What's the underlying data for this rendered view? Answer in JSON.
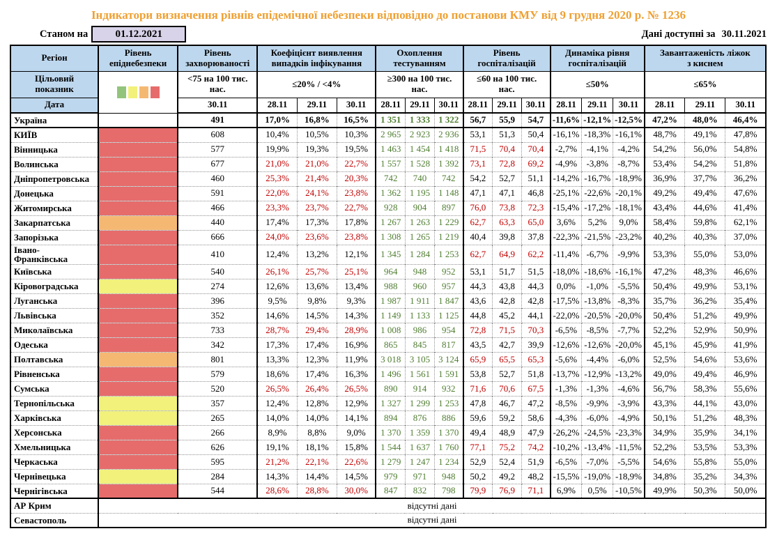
{
  "title": "Індикатори визначення рівнів епідемічної небезпеки відповідно до постанови КМУ від 9 грудня 2020 р. № 1236",
  "as_of": {
    "label": "Станом на",
    "date": "01.12.2021"
  },
  "data_available": {
    "label": "Дані доступні за",
    "date": "30.11.2021"
  },
  "no_data_text": "відсутні дані",
  "colors": {
    "title": "#EFA032",
    "header_bg": "#BDD7EE",
    "datebox_bg": "#D8D3E8",
    "good_bg": "#E2EFD9",
    "good_text": "#507E32",
    "bad_bg": "#F8CDCB",
    "bad_text": "#C00000",
    "level_red": "#E66C6C",
    "level_orange": "#F5B873",
    "level_yellow": "#F1F17C",
    "level_green": "#93C47D"
  },
  "legend_colors": [
    "#93C47D",
    "#F1F17C",
    "#F5B873",
    "#E66C6C"
  ],
  "header": {
    "region": "Регіон",
    "target_label": "Цільовий\nпоказник",
    "date_label": "Дата",
    "groups": [
      {
        "title": "Рівень\nепіднебезпеки",
        "target": "",
        "dates": [],
        "legend": true
      },
      {
        "title": "Рівень\nзахворюваності",
        "target": "<75 на 100 тис.\nнас.",
        "dates": [
          "30.11"
        ]
      },
      {
        "title": "Коефіцієнт виявлення\nвипадків інфікування",
        "target": "≤20% / <4%",
        "dates": [
          "28.11",
          "29.11",
          "30.11"
        ]
      },
      {
        "title": "Охоплення\nтестуванням",
        "target": "≥300 на 100 тис.\nнас.",
        "dates": [
          "28.11",
          "29.11",
          "30.11"
        ]
      },
      {
        "title": "Рівень\nгоспіталізацій",
        "target": "≤60 на 100 тис.\nнас.",
        "dates": [
          "28.11",
          "29.11",
          "30.11"
        ]
      },
      {
        "title": "Динаміка рівня\nгоспіталізацій",
        "target": "≤50%",
        "dates": [
          "28.11",
          "29.11",
          "30.11"
        ]
      },
      {
        "title": "Завантаженість ліжок\nз киснем",
        "target": "≤65%",
        "dates": [
          "28.11",
          "29.11",
          "30.11"
        ]
      }
    ]
  },
  "rows": [
    {
      "region": "Україна",
      "bold": true,
      "level": "none",
      "incidence": "491",
      "det": [
        "17,0%",
        "16,8%",
        "16,5%"
      ],
      "det_bad": false,
      "test": [
        "1 351",
        "1 333",
        "1 322"
      ],
      "hosp": [
        "56,7",
        "55,9",
        "54,7"
      ],
      "hosp_bad": false,
      "dyn": [
        "-11,6%",
        "-12,1%",
        "-12,5%"
      ],
      "beds": [
        "47,2%",
        "48,0%",
        "46,4%"
      ]
    },
    {
      "region": "КИЇВ",
      "level": "red",
      "incidence": "608",
      "det": [
        "10,4%",
        "10,5%",
        "10,3%"
      ],
      "det_bad": false,
      "test": [
        "2 965",
        "2 923",
        "2 936"
      ],
      "hosp": [
        "53,1",
        "51,3",
        "50,4"
      ],
      "hosp_bad": false,
      "dyn": [
        "-16,1%",
        "-18,3%",
        "-16,1%"
      ],
      "beds": [
        "48,7%",
        "49,1%",
        "47,8%"
      ]
    },
    {
      "region": "Вінницька",
      "level": "red",
      "incidence": "577",
      "det": [
        "19,9%",
        "19,3%",
        "19,5%"
      ],
      "det_bad": false,
      "test": [
        "1 463",
        "1 454",
        "1 418"
      ],
      "hosp": [
        "71,5",
        "70,4",
        "70,4"
      ],
      "hosp_bad": true,
      "dyn": [
        "-2,7%",
        "-4,1%",
        "-4,2%"
      ],
      "beds": [
        "54,2%",
        "56,0%",
        "54,8%"
      ]
    },
    {
      "region": "Волинська",
      "level": "red",
      "incidence": "677",
      "det": [
        "21,0%",
        "21,0%",
        "22,7%"
      ],
      "det_bad": true,
      "test": [
        "1 557",
        "1 528",
        "1 392"
      ],
      "hosp": [
        "73,1",
        "72,8",
        "69,2"
      ],
      "hosp_bad": true,
      "dyn": [
        "-4,9%",
        "-3,8%",
        "-8,7%"
      ],
      "beds": [
        "53,4%",
        "54,2%",
        "51,8%"
      ]
    },
    {
      "region": "Дніпропетровська",
      "level": "red",
      "incidence": "460",
      "det": [
        "25,3%",
        "21,4%",
        "20,3%"
      ],
      "det_bad": true,
      "test": [
        "742",
        "740",
        "742"
      ],
      "hosp": [
        "54,2",
        "52,7",
        "51,1"
      ],
      "hosp_bad": false,
      "dyn": [
        "-14,2%",
        "-16,7%",
        "-18,9%"
      ],
      "beds": [
        "36,9%",
        "37,7%",
        "36,2%"
      ]
    },
    {
      "region": "Донецька",
      "level": "red",
      "incidence": "591",
      "det": [
        "22,0%",
        "24,1%",
        "23,8%"
      ],
      "det_bad": true,
      "test": [
        "1 362",
        "1 195",
        "1 148"
      ],
      "hosp": [
        "47,1",
        "47,1",
        "46,8"
      ],
      "hosp_bad": false,
      "dyn": [
        "-25,1%",
        "-22,6%",
        "-20,1%"
      ],
      "beds": [
        "49,2%",
        "49,4%",
        "47,6%"
      ]
    },
    {
      "region": "Житомирська",
      "level": "red",
      "incidence": "466",
      "det": [
        "23,3%",
        "23,7%",
        "22,7%"
      ],
      "det_bad": true,
      "test": [
        "928",
        "904",
        "897"
      ],
      "hosp": [
        "76,0",
        "73,8",
        "72,3"
      ],
      "hosp_bad": true,
      "dyn": [
        "-15,4%",
        "-17,2%",
        "-18,1%"
      ],
      "beds": [
        "43,4%",
        "44,6%",
        "41,4%"
      ]
    },
    {
      "region": "Закарпатська",
      "level": "orange",
      "incidence": "440",
      "det": [
        "17,4%",
        "17,3%",
        "17,8%"
      ],
      "det_bad": false,
      "test": [
        "1 267",
        "1 263",
        "1 229"
      ],
      "hosp": [
        "62,7",
        "63,3",
        "65,0"
      ],
      "hosp_bad": true,
      "dyn": [
        "3,6%",
        "5,2%",
        "9,0%"
      ],
      "beds": [
        "58,4%",
        "59,8%",
        "62,1%"
      ]
    },
    {
      "region": "Запорізька",
      "level": "red",
      "incidence": "666",
      "det": [
        "24,0%",
        "23,6%",
        "23,8%"
      ],
      "det_bad": true,
      "test": [
        "1 308",
        "1 265",
        "1 219"
      ],
      "hosp": [
        "40,4",
        "39,8",
        "37,8"
      ],
      "hosp_bad": false,
      "dyn": [
        "-22,3%",
        "-21,5%",
        "-23,2%"
      ],
      "beds": [
        "40,2%",
        "40,3%",
        "37,0%"
      ]
    },
    {
      "region": "Івано-\nФранківська",
      "tall": true,
      "level": "red",
      "incidence": "410",
      "det": [
        "12,4%",
        "13,2%",
        "12,1%"
      ],
      "det_bad": false,
      "test": [
        "1 345",
        "1 284",
        "1 253"
      ],
      "hosp": [
        "62,7",
        "64,9",
        "62,2"
      ],
      "hosp_bad": true,
      "dyn": [
        "-11,4%",
        "-6,7%",
        "-9,9%"
      ],
      "beds": [
        "53,3%",
        "55,0%",
        "53,0%"
      ]
    },
    {
      "region": "Київська",
      "level": "red",
      "incidence": "540",
      "det": [
        "26,1%",
        "25,7%",
        "25,1%"
      ],
      "det_bad": true,
      "test": [
        "964",
        "948",
        "952"
      ],
      "hosp": [
        "53,1",
        "51,7",
        "51,5"
      ],
      "hosp_bad": false,
      "dyn": [
        "-18,0%",
        "-18,6%",
        "-16,1%"
      ],
      "beds": [
        "47,2%",
        "48,3%",
        "46,6%"
      ]
    },
    {
      "region": "Кіровоградська",
      "level": "yellow",
      "incidence": "274",
      "det": [
        "12,6%",
        "13,6%",
        "13,4%"
      ],
      "det_bad": false,
      "test": [
        "988",
        "960",
        "957"
      ],
      "hosp": [
        "44,3",
        "43,8",
        "44,3"
      ],
      "hosp_bad": false,
      "dyn": [
        "0,0%",
        "-1,0%",
        "-5,5%"
      ],
      "beds": [
        "50,4%",
        "49,9%",
        "53,1%"
      ]
    },
    {
      "region": "Луганська",
      "level": "red",
      "incidence": "396",
      "det": [
        "9,5%",
        "9,8%",
        "9,3%"
      ],
      "det_bad": false,
      "test": [
        "1 987",
        "1 911",
        "1 847"
      ],
      "hosp": [
        "43,6",
        "42,8",
        "42,8"
      ],
      "hosp_bad": false,
      "dyn": [
        "-17,5%",
        "-13,8%",
        "-8,3%"
      ],
      "beds": [
        "35,7%",
        "36,2%",
        "35,4%"
      ]
    },
    {
      "region": "Львівська",
      "level": "red",
      "incidence": "352",
      "det": [
        "14,6%",
        "14,5%",
        "14,3%"
      ],
      "det_bad": false,
      "test": [
        "1 149",
        "1 133",
        "1 125"
      ],
      "hosp": [
        "44,8",
        "45,2",
        "44,1"
      ],
      "hosp_bad": false,
      "dyn": [
        "-22,0%",
        "-20,5%",
        "-20,0%"
      ],
      "beds": [
        "50,4%",
        "51,2%",
        "49,9%"
      ]
    },
    {
      "region": "Миколаївська",
      "level": "red",
      "incidence": "733",
      "det": [
        "28,7%",
        "29,4%",
        "28,9%"
      ],
      "det_bad": true,
      "test": [
        "1 008",
        "986",
        "954"
      ],
      "hosp": [
        "72,8",
        "71,5",
        "70,3"
      ],
      "hosp_bad": true,
      "dyn": [
        "-6,5%",
        "-8,5%",
        "-7,7%"
      ],
      "beds": [
        "52,2%",
        "52,9%",
        "50,9%"
      ]
    },
    {
      "region": "Одеська",
      "level": "red",
      "incidence": "342",
      "det": [
        "17,3%",
        "17,4%",
        "16,9%"
      ],
      "det_bad": false,
      "test": [
        "865",
        "845",
        "817"
      ],
      "hosp": [
        "43,5",
        "42,7",
        "39,9"
      ],
      "hosp_bad": false,
      "dyn": [
        "-12,6%",
        "-12,6%",
        "-20,0%"
      ],
      "beds": [
        "45,1%",
        "45,9%",
        "41,9%"
      ]
    },
    {
      "region": "Полтавська",
      "level": "orange",
      "incidence": "801",
      "det": [
        "13,3%",
        "12,3%",
        "11,9%"
      ],
      "det_bad": false,
      "test": [
        "3 018",
        "3 105",
        "3 124"
      ],
      "hosp": [
        "65,9",
        "65,5",
        "65,3"
      ],
      "hosp_bad": true,
      "dyn": [
        "-5,6%",
        "-4,4%",
        "-6,0%"
      ],
      "beds": [
        "52,5%",
        "54,6%",
        "53,6%"
      ]
    },
    {
      "region": "Рівненська",
      "level": "red",
      "incidence": "579",
      "det": [
        "18,6%",
        "17,4%",
        "16,3%"
      ],
      "det_bad": false,
      "test": [
        "1 496",
        "1 561",
        "1 591"
      ],
      "hosp": [
        "53,8",
        "52,7",
        "51,8"
      ],
      "hosp_bad": false,
      "dyn": [
        "-13,7%",
        "-12,9%",
        "-13,2%"
      ],
      "beds": [
        "49,0%",
        "49,4%",
        "46,9%"
      ]
    },
    {
      "region": "Сумська",
      "level": "red",
      "incidence": "520",
      "det": [
        "26,5%",
        "26,4%",
        "26,5%"
      ],
      "det_bad": true,
      "test": [
        "890",
        "914",
        "932"
      ],
      "hosp": [
        "71,6",
        "70,6",
        "67,5"
      ],
      "hosp_bad": true,
      "dyn": [
        "-1,3%",
        "-1,3%",
        "-4,6%"
      ],
      "beds": [
        "56,7%",
        "58,3%",
        "55,6%"
      ]
    },
    {
      "region": "Тернопільська",
      "level": "yellow",
      "incidence": "357",
      "det": [
        "12,4%",
        "12,8%",
        "12,9%"
      ],
      "det_bad": false,
      "test": [
        "1 327",
        "1 299",
        "1 253"
      ],
      "hosp": [
        "47,8",
        "46,7",
        "47,2"
      ],
      "hosp_bad": false,
      "dyn": [
        "-8,5%",
        "-9,9%",
        "-3,9%"
      ],
      "beds": [
        "43,3%",
        "44,1%",
        "43,0%"
      ]
    },
    {
      "region": "Харківська",
      "level": "yellow",
      "incidence": "265",
      "det": [
        "14,0%",
        "14,0%",
        "14,1%"
      ],
      "det_bad": false,
      "test": [
        "894",
        "876",
        "886"
      ],
      "hosp": [
        "59,6",
        "59,2",
        "58,6"
      ],
      "hosp_bad": false,
      "dyn": [
        "-4,3%",
        "-6,0%",
        "-4,9%"
      ],
      "beds": [
        "50,1%",
        "51,2%",
        "48,3%"
      ]
    },
    {
      "region": "Херсонська",
      "level": "red",
      "incidence": "266",
      "det": [
        "8,9%",
        "8,8%",
        "9,0%"
      ],
      "det_bad": false,
      "test": [
        "1 370",
        "1 359",
        "1 370"
      ],
      "hosp": [
        "49,4",
        "48,9",
        "47,9"
      ],
      "hosp_bad": false,
      "dyn": [
        "-26,2%",
        "-24,5%",
        "-23,3%"
      ],
      "beds": [
        "34,9%",
        "35,9%",
        "34,1%"
      ]
    },
    {
      "region": "Хмельницька",
      "level": "red",
      "incidence": "626",
      "det": [
        "19,1%",
        "18,1%",
        "15,8%"
      ],
      "det_bad": false,
      "test": [
        "1 544",
        "1 637",
        "1 760"
      ],
      "hosp": [
        "77,1",
        "75,2",
        "74,2"
      ],
      "hosp_bad": true,
      "dyn": [
        "-10,2%",
        "-13,4%",
        "-11,5%"
      ],
      "beds": [
        "52,2%",
        "53,5%",
        "53,3%"
      ]
    },
    {
      "region": "Черкаська",
      "level": "red",
      "incidence": "595",
      "det": [
        "21,2%",
        "22,1%",
        "22,6%"
      ],
      "det_bad": true,
      "test": [
        "1 279",
        "1 247",
        "1 234"
      ],
      "hosp": [
        "52,9",
        "52,4",
        "51,9"
      ],
      "hosp_bad": false,
      "dyn": [
        "-6,5%",
        "-7,0%",
        "-5,5%"
      ],
      "beds": [
        "54,6%",
        "55,8%",
        "55,0%"
      ]
    },
    {
      "region": "Чернівецька",
      "level": "yellow",
      "incidence": "284",
      "det": [
        "14,3%",
        "14,4%",
        "14,5%"
      ],
      "det_bad": false,
      "test": [
        "979",
        "971",
        "948"
      ],
      "hosp": [
        "50,2",
        "49,2",
        "48,2"
      ],
      "hosp_bad": false,
      "dyn": [
        "-15,5%",
        "-19,0%",
        "-18,9%"
      ],
      "beds": [
        "34,8%",
        "35,2%",
        "34,3%"
      ]
    },
    {
      "region": "Чернігівська",
      "level": "red",
      "incidence": "544",
      "det": [
        "28,6%",
        "28,8%",
        "30,0%"
      ],
      "det_bad": true,
      "test": [
        "847",
        "832",
        "798"
      ],
      "hosp": [
        "79,9",
        "76,9",
        "71,1"
      ],
      "hosp_bad": true,
      "dyn": [
        "6,9%",
        "0,5%",
        "-10,5%"
      ],
      "beds": [
        "49,9%",
        "50,3%",
        "50,0%"
      ]
    }
  ],
  "no_data_rows": [
    {
      "region": "АР Крим"
    },
    {
      "region": "Севастополь"
    }
  ]
}
